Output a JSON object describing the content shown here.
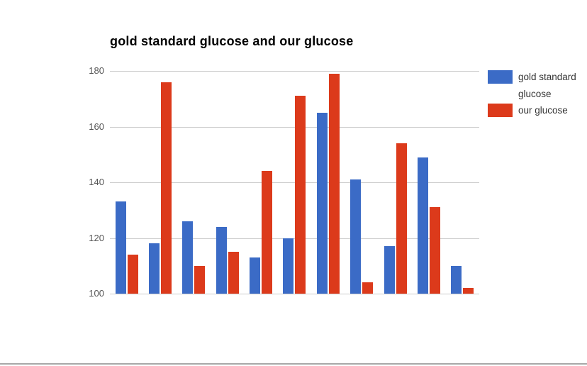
{
  "title": "gold standard glucose and our glucose",
  "legend": {
    "items": [
      {
        "label": "gold standard glucose",
        "color": "#3B6BC6"
      },
      {
        "label": "our glucose",
        "color": "#DC3A1B"
      }
    ]
  },
  "chart_data": {
    "type": "bar",
    "title": "gold standard glucose and our glucose",
    "xlabel": "",
    "ylabel": "",
    "series": [
      {
        "name": "gold standard glucose",
        "color": "#3B6BC6",
        "values": [
          133,
          118,
          126,
          124,
          113,
          120,
          165,
          141,
          117,
          149,
          110
        ]
      },
      {
        "name": "our glucose",
        "color": "#DC3A1B",
        "values": [
          114,
          176,
          110,
          115,
          144,
          171,
          179,
          104,
          154,
          131,
          102
        ]
      }
    ],
    "ylim": [
      100,
      180
    ],
    "yticks": [
      100,
      120,
      140,
      160,
      180
    ],
    "grid": true,
    "legend_position": "right",
    "gridline_color": "#cccccc",
    "axis_text_color": "#555555"
  }
}
